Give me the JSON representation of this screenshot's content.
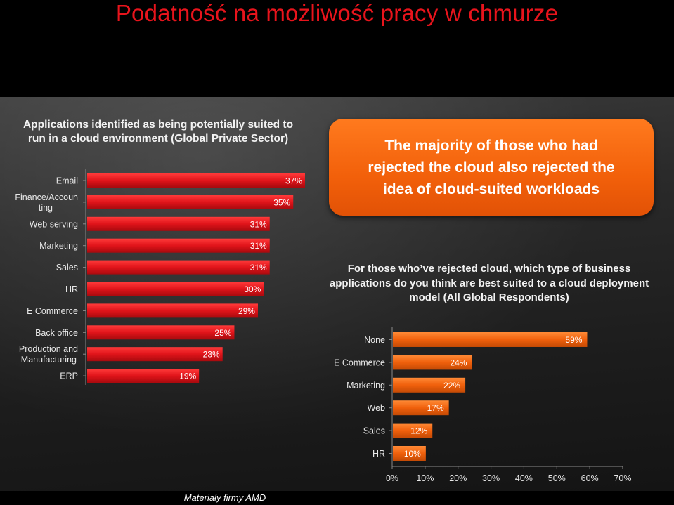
{
  "slide": {
    "title": "Podatność na możliwość pracy w chmurze",
    "footnote": "Materiały firmy AMD"
  },
  "callout": {
    "text": "The majority of  those who had\nrejected the cloud also rejected the\nidea of cloud-suited workloads"
  },
  "colors": {
    "left_bar": "#e0141a",
    "right_bar": "#f0600c",
    "callout": "#f26a12",
    "title": "#e8141c"
  },
  "chart_data": [
    {
      "type": "bar",
      "orientation": "horizontal",
      "title": "Applications identified as being potentially suited to run in a cloud environment (Global Private Sector)",
      "categories": [
        "Email",
        "Finance/Accounting",
        "Web serving",
        "Marketing",
        "Sales",
        "HR",
        "E Commerce",
        "Back office",
        "Production and Manufacturing",
        "ERP"
      ],
      "category_lines": [
        [
          "Email"
        ],
        [
          "Finance/Accoun",
          "ting"
        ],
        [
          "Web serving"
        ],
        [
          "Marketing"
        ],
        [
          "Sales"
        ],
        [
          "HR"
        ],
        [
          "E Commerce"
        ],
        [
          "Back office"
        ],
        [
          "Production and",
          "Manufacturing"
        ],
        [
          "ERP"
        ]
      ],
      "values": [
        37,
        35,
        31,
        31,
        31,
        30,
        29,
        25,
        23,
        19
      ],
      "value_labels": [
        "37%",
        "35%",
        "31%",
        "31%",
        "31%",
        "30%",
        "29%",
        "25%",
        "23%",
        "19%"
      ],
      "xlim": [
        0,
        37
      ],
      "axis_visible": false,
      "grid": false
    },
    {
      "type": "bar",
      "orientation": "horizontal",
      "title": "For those who’ve rejected cloud, which type of business applications do you think are best suited to a cloud deployment model (All Global Respondents)",
      "categories": [
        "None",
        "E Commerce",
        "Marketing",
        "Web",
        "Sales",
        "HR"
      ],
      "values": [
        59,
        24,
        22,
        17,
        12,
        10
      ],
      "value_labels": [
        "59%",
        "24%",
        "22%",
        "17%",
        "12%",
        "10%"
      ],
      "xlim": [
        0,
        70
      ],
      "ticks": [
        "0%",
        "10%",
        "20%",
        "30%",
        "40%",
        "50%",
        "60%",
        "70%"
      ],
      "grid": false
    }
  ]
}
